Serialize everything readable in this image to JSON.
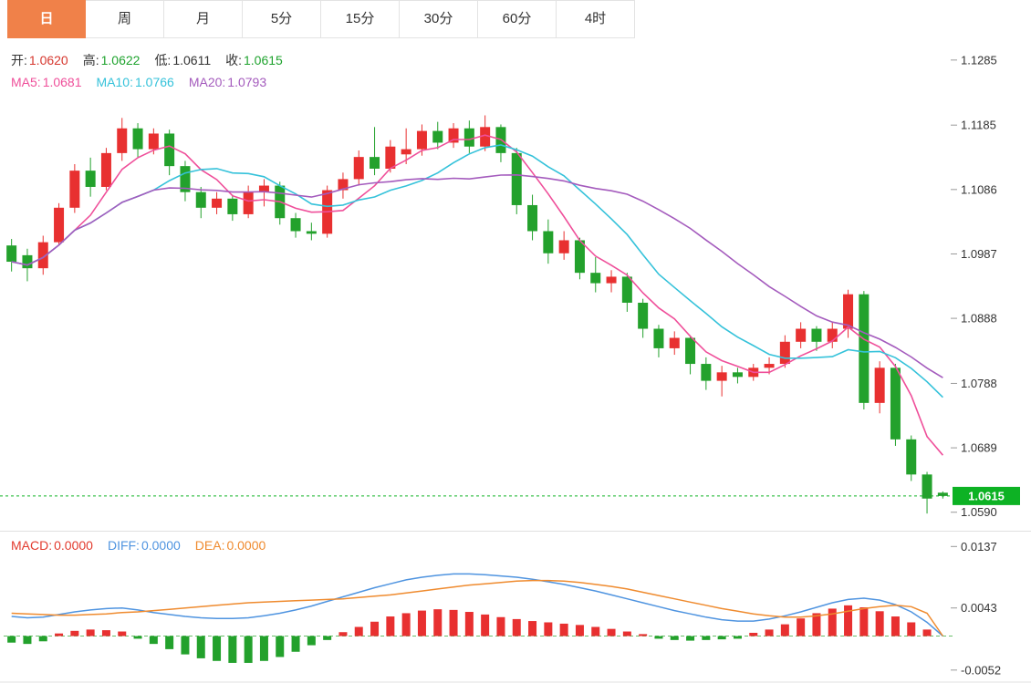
{
  "toolbar": {
    "active_color": "#f08149",
    "tabs": [
      {
        "label": "日",
        "active": true
      },
      {
        "label": "周",
        "active": false
      },
      {
        "label": "月",
        "active": false
      },
      {
        "label": "5分",
        "active": false
      },
      {
        "label": "15分",
        "active": false
      },
      {
        "label": "30分",
        "active": false
      },
      {
        "label": "60分",
        "active": false
      },
      {
        "label": "4时",
        "active": false
      }
    ]
  },
  "legend_ohlc": [
    {
      "label": "开:",
      "value": "1.0620",
      "label_color": "#333333",
      "value_color": "#d6372e"
    },
    {
      "label": "高:",
      "value": "1.0622",
      "label_color": "#333333",
      "value_color": "#1fa32e"
    },
    {
      "label": "低:",
      "value": "1.0611",
      "label_color": "#333333",
      "value_color": "#333333"
    },
    {
      "label": "收:",
      "value": "1.0615",
      "label_color": "#333333",
      "value_color": "#1fa32e"
    }
  ],
  "legend_ma": [
    {
      "label": "MA5:",
      "value": "1.0681",
      "label_color": "#ef4f9a",
      "value_color": "#ef4f9a"
    },
    {
      "label": "MA10:",
      "value": "1.0766",
      "label_color": "#35c2da",
      "value_color": "#35c2da"
    },
    {
      "label": "MA20:",
      "value": "1.0793",
      "label_color": "#a45bbd",
      "value_color": "#a45bbd"
    }
  ],
  "legend_macd": [
    {
      "label": "MACD:",
      "value": "0.0000",
      "label_color": "#e23b2e",
      "value_color": "#e23b2e"
    },
    {
      "label": "DIFF:",
      "value": "0.0000",
      "label_color": "#4f94e0",
      "value_color": "#4f94e0"
    },
    {
      "label": "DEA:",
      "value": "0.0000",
      "label_color": "#ef8b2f",
      "value_color": "#ef8b2f"
    }
  ],
  "price_axis": {
    "ticks": [
      "1.1285",
      "1.1185",
      "1.1086",
      "1.0987",
      "1.0888",
      "1.0788",
      "1.0689",
      "1.0590"
    ],
    "current": "1.0615",
    "current_color": "#0db224"
  },
  "macd_axis": {
    "ticks": [
      "0.0137",
      "0.0043",
      "-0.0052"
    ]
  },
  "chart_data": {
    "type": "candlestick",
    "title": "",
    "up_color": "#e83030",
    "down_color": "#23a12c",
    "y_domain_main": [
      1.057,
      1.131
    ],
    "y_domain_macd": [
      -0.0062,
      0.015
    ],
    "ohlc_current": {
      "open": 1.062,
      "high": 1.0622,
      "low": 1.0611,
      "close": 1.0615
    },
    "ma_current": {
      "ma5": 1.0681,
      "ma10": 1.0766,
      "ma20": 1.0793
    },
    "ma_periods": [
      5,
      10,
      20
    ],
    "ma_colors": [
      "#ef4f9a",
      "#35c2da",
      "#a45bbd"
    ],
    "candles": [
      [
        1.1,
        1.101,
        1.096,
        1.0975
      ],
      [
        1.0985,
        1.0995,
        1.0945,
        1.0965
      ],
      [
        1.0965,
        1.1015,
        1.0955,
        1.1005
      ],
      [
        1.1005,
        1.1065,
        1.1,
        1.1058
      ],
      [
        1.1058,
        1.1125,
        1.105,
        1.1115
      ],
      [
        1.1115,
        1.1135,
        1.1075,
        1.109
      ],
      [
        1.109,
        1.115,
        1.1085,
        1.1142
      ],
      [
        1.1142,
        1.1196,
        1.113,
        1.118
      ],
      [
        1.118,
        1.1188,
        1.1135,
        1.1148
      ],
      [
        1.1148,
        1.118,
        1.114,
        1.1172
      ],
      [
        1.1172,
        1.1178,
        1.1108,
        1.1122
      ],
      [
        1.1122,
        1.113,
        1.1068,
        1.1082
      ],
      [
        1.1082,
        1.109,
        1.1042,
        1.1058
      ],
      [
        1.1058,
        1.1082,
        1.1048,
        1.1072
      ],
      [
        1.1072,
        1.1078,
        1.1038,
        1.1048
      ],
      [
        1.1048,
        1.1092,
        1.1042,
        1.1082
      ],
      [
        1.1082,
        1.1102,
        1.106,
        1.1092
      ],
      [
        1.1092,
        1.1098,
        1.1032,
        1.1042
      ],
      [
        1.1042,
        1.105,
        1.1012,
        1.1022
      ],
      [
        1.1022,
        1.1035,
        1.1008,
        1.1018
      ],
      [
        1.1018,
        1.1092,
        1.1012,
        1.1085
      ],
      [
        1.1085,
        1.1112,
        1.1072,
        1.1102
      ],
      [
        1.1102,
        1.1146,
        1.1092,
        1.1136
      ],
      [
        1.1136,
        1.1182,
        1.1108,
        1.1118
      ],
      [
        1.1118,
        1.1162,
        1.1112,
        1.1152
      ],
      [
        1.114,
        1.118,
        1.1125,
        1.1148
      ],
      [
        1.1148,
        1.1186,
        1.1138,
        1.1176
      ],
      [
        1.1176,
        1.119,
        1.1148,
        1.1158
      ],
      [
        1.1158,
        1.1188,
        1.115,
        1.118
      ],
      [
        1.118,
        1.1192,
        1.1142,
        1.1152
      ],
      [
        1.1152,
        1.12,
        1.1145,
        1.1182
      ],
      [
        1.1182,
        1.1186,
        1.1128,
        1.1142
      ],
      [
        1.1142,
        1.115,
        1.1048,
        1.1062
      ],
      [
        1.1062,
        1.1078,
        1.1008,
        1.1022
      ],
      [
        1.1022,
        1.104,
        1.0972,
        1.0988
      ],
      [
        1.0988,
        1.1022,
        1.0978,
        1.1008
      ],
      [
        1.1008,
        1.1012,
        1.0948,
        1.0958
      ],
      [
        1.0958,
        1.0982,
        1.0928,
        1.0942
      ],
      [
        1.0942,
        1.0962,
        1.0928,
        1.0952
      ],
      [
        1.0952,
        1.0958,
        1.0898,
        1.0912
      ],
      [
        1.0912,
        1.0918,
        1.0858,
        1.0872
      ],
      [
        1.0872,
        1.0878,
        1.0828,
        1.0842
      ],
      [
        1.0842,
        1.0868,
        1.0832,
        1.0858
      ],
      [
        1.0858,
        1.0862,
        1.0802,
        1.0818
      ],
      [
        1.0818,
        1.0828,
        1.0778,
        1.0792
      ],
      [
        1.0792,
        1.0815,
        1.0768,
        1.0805
      ],
      [
        1.0805,
        1.0812,
        1.0788,
        1.0798
      ],
      [
        1.0798,
        1.0818,
        1.0792,
        1.0812
      ],
      [
        1.0812,
        1.0828,
        1.0802,
        1.0818
      ],
      [
        1.0818,
        1.0862,
        1.0812,
        1.0852
      ],
      [
        1.0852,
        1.0882,
        1.0842,
        1.0872
      ],
      [
        1.0872,
        1.0876,
        1.0838,
        1.0852
      ],
      [
        1.0852,
        1.0882,
        1.0842,
        1.0872
      ],
      [
        1.0872,
        1.0932,
        1.0858,
        1.0925
      ],
      [
        1.0925,
        1.093,
        1.0748,
        1.0758
      ],
      [
        1.0758,
        1.0822,
        1.0742,
        1.0812
      ],
      [
        1.0812,
        1.0818,
        1.0692,
        1.0702
      ],
      [
        1.0702,
        1.0708,
        1.0638,
        1.0648
      ],
      [
        1.0648,
        1.0652,
        1.0588,
        1.0611
      ],
      [
        1.062,
        1.0622,
        1.0611,
        1.0615
      ]
    ],
    "macd": {
      "diff_color": "#4f94e0",
      "dea_color": "#ef8b2f",
      "zero_line_color": "#6abf69",
      "histogram": [
        -0.001,
        -0.0012,
        -0.0008,
        0.0004,
        0.0008,
        0.001,
        0.0009,
        0.0007,
        -0.0004,
        -0.0012,
        -0.002,
        -0.0028,
        -0.0034,
        -0.0038,
        -0.0041,
        -0.0041,
        -0.0038,
        -0.0032,
        -0.0024,
        -0.0014,
        -0.0006,
        0.0006,
        0.0014,
        0.0022,
        0.003,
        0.0035,
        0.0039,
        0.0041,
        0.004,
        0.0037,
        0.0033,
        0.0029,
        0.0026,
        0.0023,
        0.0021,
        0.0019,
        0.0017,
        0.0014,
        0.0011,
        0.0007,
        0.0003,
        -0.0004,
        -0.0006,
        -0.0007,
        -0.0006,
        -0.0005,
        -0.0004,
        0.0005,
        0.001,
        0.0018,
        0.0027,
        0.0035,
        0.0042,
        0.0047,
        0.0044,
        0.0038,
        0.003,
        0.0021,
        0.001,
        0.0
      ],
      "diff": [
        0.003,
        0.0028,
        0.0029,
        0.0033,
        0.0037,
        0.004,
        0.0042,
        0.0043,
        0.004,
        0.0036,
        0.0033,
        0.003,
        0.0028,
        0.0027,
        0.0027,
        0.0028,
        0.0031,
        0.0035,
        0.004,
        0.0046,
        0.0053,
        0.006,
        0.0067,
        0.0074,
        0.008,
        0.0086,
        0.009,
        0.0093,
        0.0095,
        0.0095,
        0.0094,
        0.0092,
        0.009,
        0.0087,
        0.0083,
        0.0079,
        0.0074,
        0.0069,
        0.0063,
        0.0057,
        0.0051,
        0.0045,
        0.0039,
        0.0034,
        0.0029,
        0.0025,
        0.0023,
        0.0023,
        0.0026,
        0.0031,
        0.0037,
        0.0044,
        0.0051,
        0.0056,
        0.0058,
        0.0055,
        0.0048,
        0.0037,
        0.0021,
        0.0
      ],
      "dea": [
        0.0035,
        0.0034,
        0.0033,
        0.0032,
        0.0032,
        0.0033,
        0.0034,
        0.0036,
        0.0037,
        0.0039,
        0.0041,
        0.0043,
        0.0045,
        0.0047,
        0.0049,
        0.0051,
        0.0052,
        0.0053,
        0.0054,
        0.0055,
        0.0056,
        0.0057,
        0.0059,
        0.0061,
        0.0063,
        0.0066,
        0.0069,
        0.0072,
        0.0075,
        0.0078,
        0.008,
        0.0082,
        0.0084,
        0.0085,
        0.0085,
        0.0084,
        0.0082,
        0.0079,
        0.0076,
        0.0072,
        0.0067,
        0.0062,
        0.0057,
        0.0052,
        0.0047,
        0.0042,
        0.0038,
        0.0034,
        0.0031,
        0.0029,
        0.0029,
        0.0031,
        0.0034,
        0.0038,
        0.0042,
        0.0045,
        0.0047,
        0.0045,
        0.0035,
        0.0
      ]
    }
  }
}
